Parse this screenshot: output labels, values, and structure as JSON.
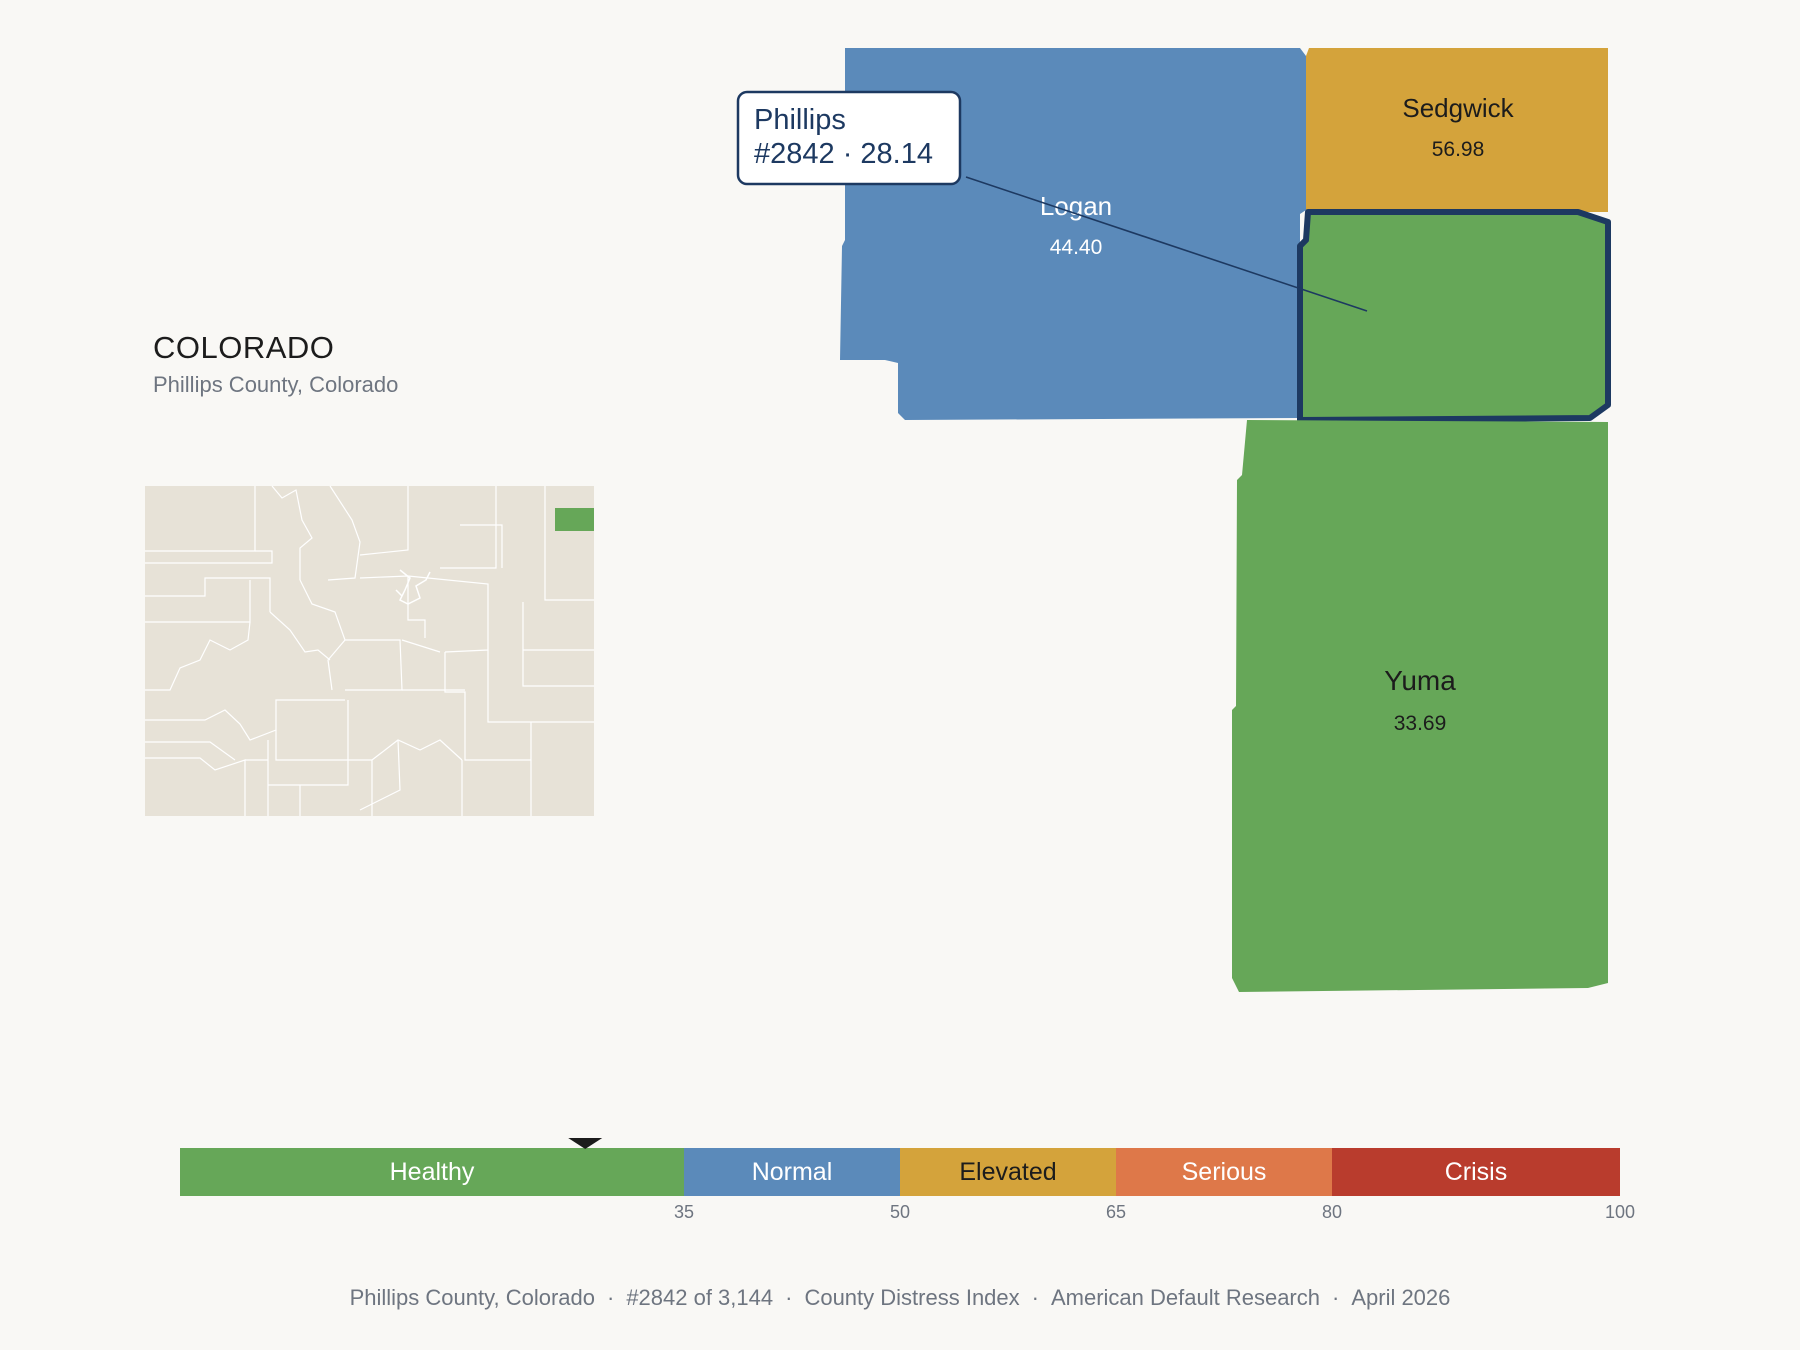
{
  "state": {
    "name": "COLORADO",
    "subtitle": "Phillips County, Colorado"
  },
  "counties": [
    {
      "name": "Logan",
      "value": "44.40",
      "category": "Normal"
    },
    {
      "name": "Sedgwick",
      "value": "56.98",
      "category": "Elevated"
    },
    {
      "name": "Phillips",
      "value": "28.14",
      "category": "Healthy",
      "highlighted": true
    },
    {
      "name": "Yuma",
      "value": "33.69",
      "category": "Healthy"
    }
  ],
  "callout": {
    "line1": "Phillips",
    "line2": "#2842 · 28.14"
  },
  "legend": {
    "bands": [
      {
        "label": "Healthy",
        "from": 0,
        "to": 35,
        "color": "#66a758"
      },
      {
        "label": "Normal",
        "from": 35,
        "to": 50,
        "color": "#5b8aba"
      },
      {
        "label": "Elevated",
        "from": 50,
        "to": 65,
        "color": "#d4a33b"
      },
      {
        "label": "Serious",
        "from": 65,
        "to": 80,
        "color": "#de7849"
      },
      {
        "label": "Crisis",
        "from": 80,
        "to": 100,
        "color": "#b93c2d"
      }
    ],
    "ticks": [
      "35",
      "50",
      "65",
      "80",
      "100"
    ],
    "marker_value": 28.14
  },
  "colors": {
    "healthy": "#66a758",
    "normal": "#5b8aba",
    "elevated": "#d4a33b",
    "serious": "#de7849",
    "crisis": "#b93c2d",
    "highlight_stroke": "#1d3961",
    "inset_fill": "#e7e2d7",
    "background": "#f9f8f5"
  },
  "footer": {
    "place": "Phillips County, Colorado",
    "rank": "#2842 of 3,144",
    "index": "County Distress Index",
    "source": "American Default Research",
    "date": "April 2026"
  }
}
